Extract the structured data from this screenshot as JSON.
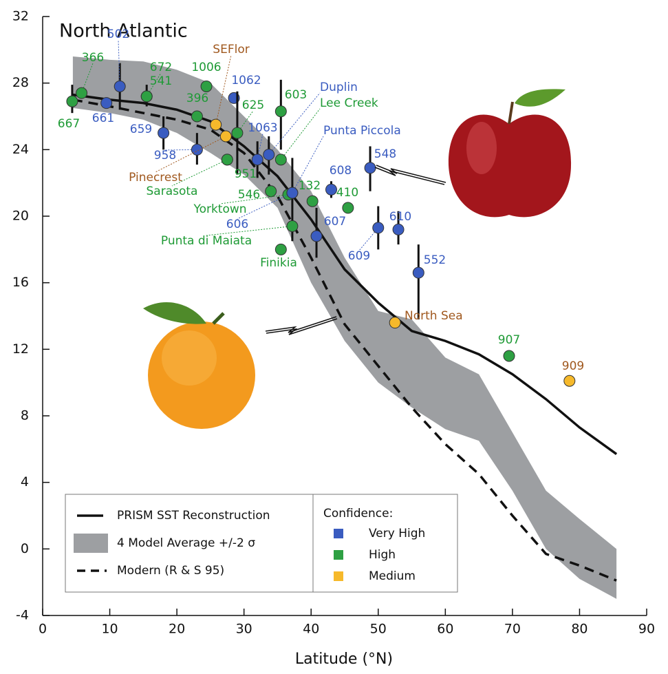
{
  "chart_data": {
    "type": "scatter",
    "title": "North Atlantic",
    "x_label": "Latitude (°N)",
    "xlim": [
      0,
      90
    ],
    "ylim": [
      -4,
      32
    ],
    "xticks": [
      0,
      10,
      20,
      30,
      40,
      50,
      60,
      70,
      80,
      90
    ],
    "yticks": [
      -4,
      0,
      4,
      8,
      12,
      16,
      20,
      24,
      28,
      32
    ],
    "curves": {
      "x": [
        4.5,
        10,
        15,
        20,
        25,
        30,
        35,
        40,
        45,
        50,
        55,
        60,
        65,
        70,
        75,
        80,
        85.5
      ],
      "prism": {
        "name": "PRISM SST Reconstruction",
        "color": "#111111",
        "values": [
          27.3,
          27.0,
          26.8,
          26.4,
          25.7,
          24.2,
          22.4,
          19.8,
          16.8,
          14.8,
          13.1,
          12.5,
          11.7,
          10.5,
          9.0,
          7.3,
          5.7
        ]
      },
      "band": {
        "name": "4 Model Average +/-2 σ",
        "color": "#9d9fa2",
        "upper": [
          29.6,
          29.4,
          29.3,
          28.8,
          28.0,
          26.0,
          24.0,
          21.5,
          17.5,
          14.3,
          13.8,
          11.5,
          10.5,
          7.0,
          3.5,
          1.8,
          0.0
        ],
        "lower": [
          26.5,
          26.2,
          25.8,
          25.0,
          23.8,
          22.5,
          20.5,
          16.0,
          12.5,
          10.0,
          8.5,
          7.2,
          6.5,
          3.5,
          0.0,
          -1.8,
          -3.0
        ]
      },
      "modern": {
        "name": "Modern (R & S 95)",
        "color": "#111111",
        "values": [
          27.0,
          26.6,
          26.2,
          25.8,
          25.2,
          23.8,
          21.2,
          17.5,
          13.5,
          11.0,
          8.5,
          6.3,
          4.5,
          2.0,
          -0.3,
          -1.0,
          -1.9
        ]
      }
    },
    "legend_title": "Confidence:",
    "confidence_levels": [
      {
        "name": "Very High",
        "color": "#3a5cc0",
        "text_color": "#3a5cc0"
      },
      {
        "name": "High",
        "color": "#2ea043",
        "text_color": "#1e9a35"
      },
      {
        "name": "Medium",
        "color": "#f6b92b",
        "text_color": "#a0581e"
      }
    ],
    "points": {
      "labels": [
        "667",
        "366",
        "661",
        "502",
        "672",
        "541",
        "659",
        "396",
        "958",
        "1006",
        "SEFlor",
        "Pinecrest",
        "Sarasota",
        "951",
        "1062",
        "625",
        "603",
        "1063",
        "Duplin",
        "Lee Creek",
        "Punta Piccola",
        "546",
        "Yorktown",
        "606",
        "Punta di Maiata",
        "Finikia",
        "132",
        "608",
        "410",
        "607",
        "548",
        "609",
        "610",
        "552",
        "North Sea",
        "907",
        "909"
      ],
      "lat": [
        4.4,
        5.8,
        9.5,
        11.5,
        15.5,
        15.5,
        18,
        23,
        23,
        24.4,
        25.8,
        27.3,
        27.5,
        27.5,
        28.5,
        29,
        35.5,
        32,
        33.7,
        35.5,
        37.2,
        34,
        36.6,
        37.2,
        37.2,
        35.5,
        40.2,
        43,
        45.5,
        40.8,
        48.8,
        50,
        53,
        56,
        52.5,
        69.5,
        78.5
      ],
      "sst": [
        26.9,
        27.4,
        26.8,
        27.8,
        27.2,
        27.2,
        25.0,
        26.0,
        24.0,
        27.8,
        25.5,
        24.8,
        23.4,
        23.4,
        27.1,
        25.0,
        26.3,
        23.4,
        23.7,
        23.4,
        21.4,
        21.5,
        21.3,
        21.4,
        19.4,
        18.0,
        20.9,
        21.6,
        20.5,
        18.8,
        22.9,
        19.3,
        19.2,
        16.6,
        13.6,
        11.6,
        10.1
      ],
      "err_low": [
        26.2,
        null,
        null,
        26.4,
        26.6,
        null,
        24.0,
        null,
        23.1,
        null,
        null,
        null,
        null,
        null,
        null,
        22.5,
        24.0,
        22.3,
        22.5,
        null,
        18.5,
        null,
        null,
        null,
        null,
        null,
        null,
        21.1,
        null,
        17.5,
        21.5,
        18.0,
        18.3,
        13.8,
        null,
        null,
        null
      ],
      "err_high": [
        27.9,
        null,
        null,
        29.2,
        27.9,
        null,
        26.0,
        null,
        25.0,
        null,
        null,
        null,
        null,
        null,
        null,
        27.5,
        28.2,
        24.5,
        24.8,
        null,
        23.5,
        null,
        null,
        null,
        null,
        null,
        null,
        22.1,
        null,
        20.5,
        24.2,
        20.6,
        20.3,
        18.3,
        null,
        null,
        null
      ],
      "confidence": [
        1,
        1,
        0,
        0,
        1,
        1,
        0,
        1,
        0,
        1,
        2,
        2,
        1,
        1,
        0,
        1,
        1,
        0,
        0,
        1,
        0,
        1,
        1,
        0,
        1,
        1,
        1,
        0,
        1,
        0,
        0,
        0,
        0,
        0,
        2,
        1,
        2
      ]
    }
  }
}
